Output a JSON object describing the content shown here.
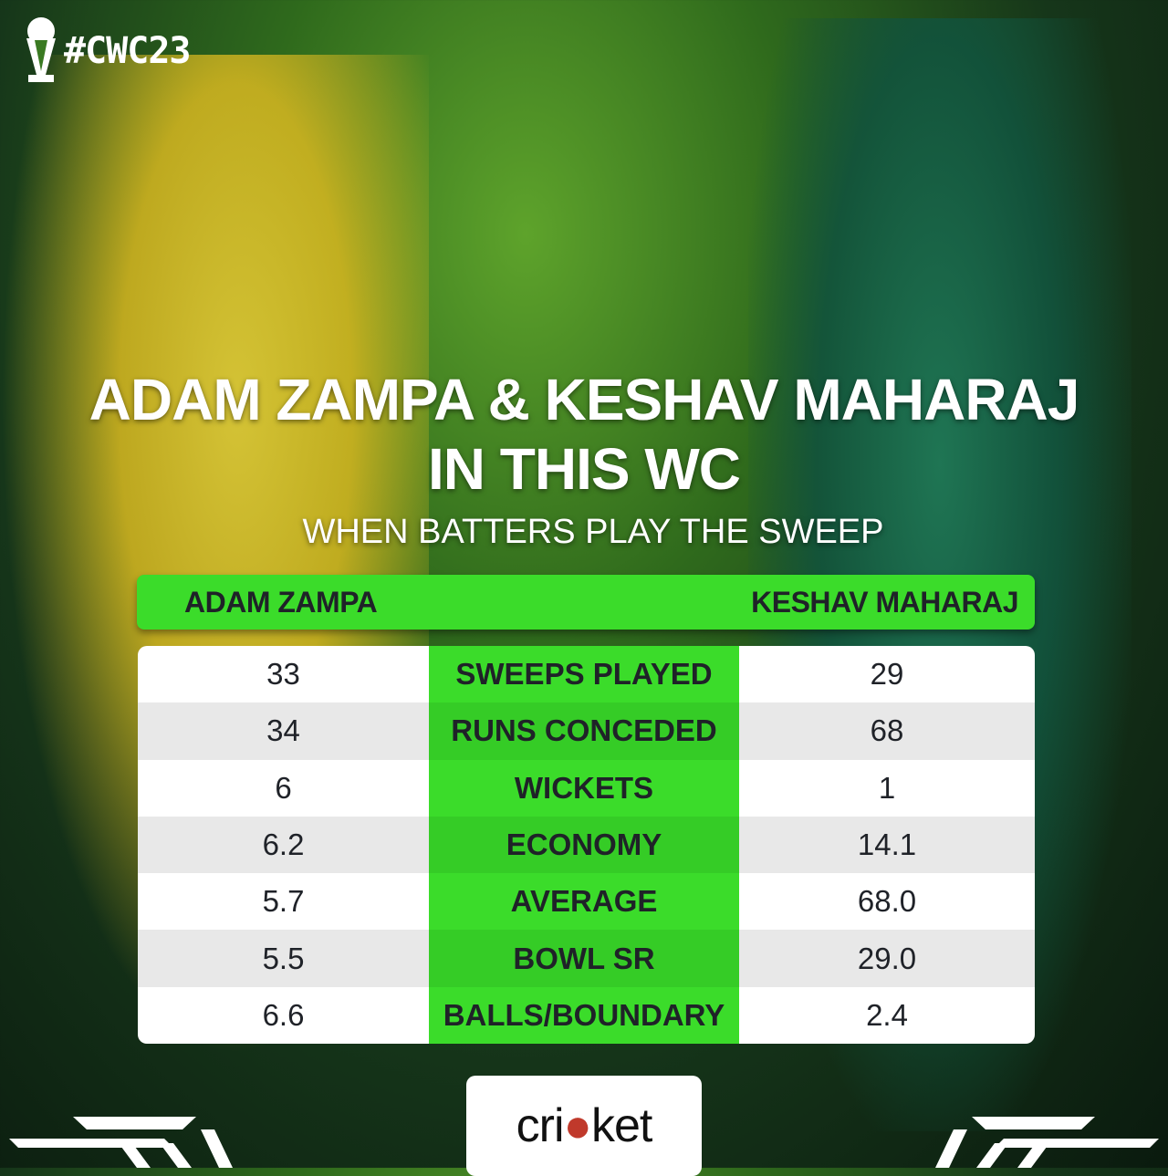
{
  "badge": {
    "icon": "trophy-icon",
    "text": "#CWC23"
  },
  "title": {
    "line1": "ADAM ZAMPA & KESHAV MAHARAJ",
    "line2": "IN THIS WC"
  },
  "subtitle": "WHEN BATTERS PLAY THE SWEEP",
  "header": {
    "left": "ADAM ZAMPA",
    "right": "KESHAV MAHARAJ"
  },
  "rows": [
    {
      "left": "33",
      "label": "SWEEPS PLAYED",
      "right": "29"
    },
    {
      "left": "34",
      "label": "RUNS CONCEDED",
      "right": "68"
    },
    {
      "left": "6",
      "label": "WICKETS",
      "right": "1"
    },
    {
      "left": "6.2",
      "label": "ECONOMY",
      "right": "14.1"
    },
    {
      "left": "5.7",
      "label": "AVERAGE",
      "right": "68.0"
    },
    {
      "left": "5.5",
      "label": "BOWL SR",
      "right": "29.0"
    },
    {
      "left": "6.6",
      "label": "BALLS/BOUNDARY",
      "right": "2.4"
    }
  ],
  "logo": {
    "text": "cricket"
  },
  "colors": {
    "accent": "#3bdc2a",
    "background": "#16361a",
    "text_dark": "#1f2228"
  }
}
